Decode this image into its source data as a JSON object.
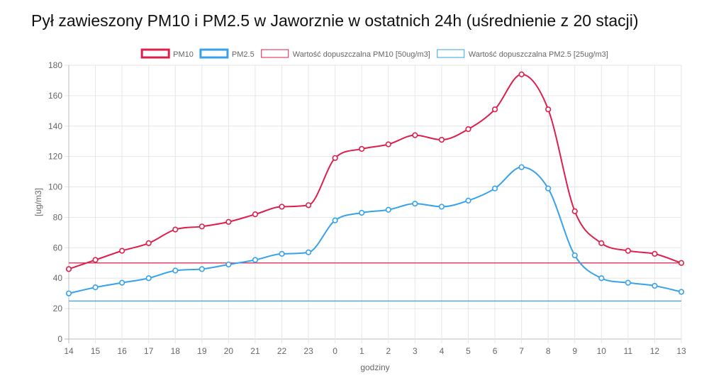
{
  "title": "Pył zawieszony PM10 i PM2.5 w Jaworznie w ostatnich 24h (uśrednienie z 20 stacji)",
  "chart_data": {
    "type": "line",
    "xlabel": "godziny",
    "ylabel": "[ug/m3]",
    "ylim": [
      0,
      180
    ],
    "yticks": [
      0,
      20,
      40,
      60,
      80,
      100,
      120,
      140,
      160,
      180
    ],
    "grid": true,
    "legend_position": "top",
    "categories": [
      "14",
      "15",
      "16",
      "17",
      "18",
      "19",
      "20",
      "21",
      "22",
      "23",
      "0",
      "1",
      "2",
      "3",
      "4",
      "5",
      "6",
      "7",
      "8",
      "9",
      "10",
      "11",
      "12",
      "13"
    ],
    "series": [
      {
        "name": "PM10",
        "color": "#dc1f4b",
        "values": [
          46,
          52,
          58,
          63,
          72,
          74,
          77,
          82,
          87,
          88,
          119,
          125,
          128,
          134,
          131,
          138,
          151,
          174,
          151,
          84,
          63,
          58,
          56,
          50
        ]
      },
      {
        "name": "PM2.5",
        "color": "#36a2eb",
        "values": [
          30,
          34,
          37,
          40,
          45,
          46,
          49,
          52,
          56,
          57,
          78,
          83,
          85,
          89,
          87,
          91,
          99,
          113,
          99,
          55,
          40,
          37,
          35,
          31
        ]
      }
    ],
    "reference_lines": [
      {
        "name": "Wartość dopuszczalna PM10 [50ug/m3]",
        "value": 50,
        "color": "#dc1f4b"
      },
      {
        "name": "Wartość dopuszczalna PM2.5 [25ug/m3]",
        "value": 25,
        "color": "#36a2eb"
      }
    ]
  }
}
